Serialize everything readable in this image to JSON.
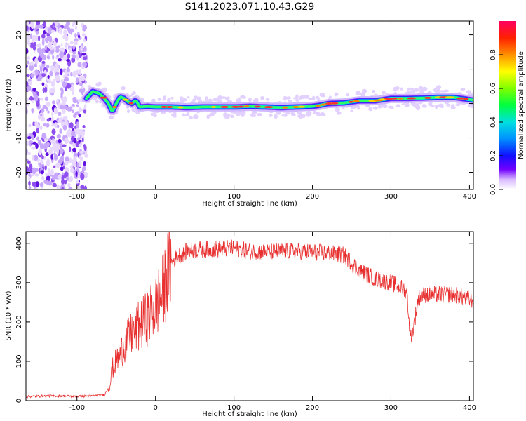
{
  "title": "S141.2023.071.10.43.G29",
  "chart_data": [
    {
      "type": "heatmap",
      "xlabel": "Height of straight line (km)",
      "ylabel": "Frequency (Hz)",
      "xlim": [
        -165,
        405
      ],
      "ylim": [
        -25,
        24
      ],
      "xticks": [
        -100,
        0,
        100,
        200,
        300,
        400
      ],
      "yticks": [
        -20,
        -10,
        0,
        10,
        20
      ],
      "colorbar": {
        "label": "Normalized spectral amplitude",
        "range": [
          0,
          1
        ],
        "ticks": [
          0.0,
          0.2,
          0.4,
          0.6,
          0.8
        ]
      },
      "ridge": {
        "x": [
          -88,
          -80,
          -72,
          -65,
          -60,
          -55,
          -50,
          -45,
          -40,
          -35,
          -30,
          -25,
          -20,
          -10,
          0,
          20,
          40,
          60,
          80,
          100,
          120,
          140,
          160,
          180,
          200,
          210,
          220,
          240,
          260,
          280,
          300,
          320,
          340,
          360,
          380,
          405
        ],
        "y": [
          1.5,
          3.5,
          3.0,
          1.5,
          0.0,
          -2.5,
          0.0,
          2.0,
          1.5,
          0.5,
          0.0,
          1.0,
          -1.0,
          -0.8,
          -1.0,
          -1.0,
          -1.2,
          -1.0,
          -1.0,
          -1.0,
          -0.8,
          -1.0,
          -1.2,
          -1.0,
          -0.8,
          -0.5,
          0.0,
          0.2,
          0.8,
          0.8,
          1.5,
          1.5,
          1.6,
          1.8,
          1.8,
          1.0
        ]
      }
    },
    {
      "type": "line",
      "xlabel": "Height of straight line (km)",
      "ylabel": "SNR (10 * v/v)",
      "xlim": [
        -165,
        405
      ],
      "ylim": [
        0,
        430
      ],
      "xticks": [
        -100,
        0,
        100,
        200,
        300,
        400
      ],
      "yticks": [
        0,
        100,
        200,
        300,
        400
      ],
      "color": "#e83030",
      "series": [
        {
          "x": [
            -165,
            -140,
            -120,
            -100,
            -80,
            -65,
            -58,
            -55,
            -50,
            -40,
            -30,
            -20,
            -10,
            0,
            10,
            15,
            20,
            30,
            40,
            60,
            80,
            100,
            120,
            140,
            160,
            180,
            200,
            220,
            240,
            250,
            260,
            270,
            280,
            300,
            320,
            325,
            328,
            335,
            340,
            360,
            380,
            405
          ],
          "y": [
            10,
            12,
            12,
            11,
            12,
            15,
            40,
            80,
            100,
            140,
            170,
            190,
            210,
            240,
            280,
            320,
            350,
            370,
            380,
            385,
            385,
            388,
            380,
            378,
            380,
            380,
            378,
            375,
            370,
            350,
            330,
            320,
            310,
            300,
            280,
            160,
            180,
            260,
            270,
            270,
            270,
            255
          ]
        }
      ]
    }
  ]
}
